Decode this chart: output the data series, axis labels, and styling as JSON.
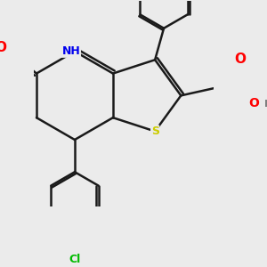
{
  "bg_color": "#ebebeb",
  "bond_color": "#1a1a1a",
  "bond_width": 1.8,
  "dbo": 0.08,
  "atom_colors": {
    "N": "#0000ee",
    "O": "#ff0000",
    "S": "#cccc00",
    "Cl": "#00bb00",
    "H_gray": "#808080",
    "C": "#1a1a1a"
  },
  "figsize": [
    3.0,
    3.0
  ],
  "dpi": 100
}
